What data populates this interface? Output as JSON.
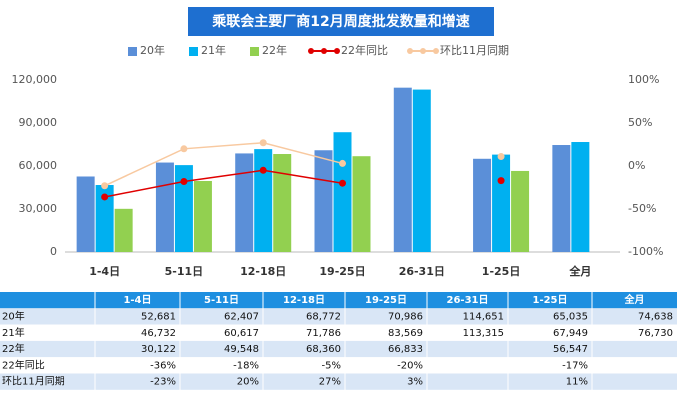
{
  "chart_data": {
    "type": "bar",
    "title": "乘联会主要厂商12月周度批发数量和增速",
    "categories": [
      "1-4日",
      "5-11日",
      "12-18日",
      "19-25日",
      "26-31日",
      "1-25日",
      "全月"
    ],
    "series": [
      {
        "name": "20年",
        "color": "#5b8fd8",
        "values": [
          52681,
          62407,
          68772,
          70986,
          114651,
          65035,
          74638
        ]
      },
      {
        "name": "21年",
        "color": "#00b0f0",
        "values": [
          46732,
          60617,
          71786,
          83569,
          113315,
          67949,
          76730
        ]
      },
      {
        "name": "22年",
        "color": "#92d050",
        "values": [
          30122,
          49548,
          68360,
          66833,
          null,
          56547,
          null
        ]
      },
      {
        "name": "22年同比",
        "type": "line",
        "axis": "y2",
        "color": "#e00000",
        "values": [
          -36,
          -18,
          -5,
          -20,
          null,
          -17,
          null
        ]
      },
      {
        "name": "环比11月同期",
        "type": "line",
        "axis": "y2",
        "color": "#f8c9a0",
        "values": [
          -23,
          20,
          27,
          3,
          null,
          11,
          null
        ]
      }
    ],
    "ylim": [
      0,
      120000
    ],
    "yticks": [
      0,
      {
        "value": 30000,
        "label": "30,000"
      },
      {
        "value": 60000,
        "label": "60,000"
      },
      {
        "value": 90000,
        "label": "90,000"
      },
      {
        "value": 120000,
        "label": "120,000"
      }
    ],
    "y2lim": [
      -100,
      100
    ],
    "y2ticks": [
      {
        "value": -100,
        "label": "-100%"
      },
      {
        "value": -50,
        "label": "-50%"
      },
      {
        "value": 0,
        "label": "0%"
      },
      {
        "value": 50,
        "label": "50%"
      },
      {
        "value": 100,
        "label": "100%"
      }
    ],
    "grid": false
  },
  "table": {
    "header": [
      "1-4日",
      "5-11日",
      "12-18日",
      "19-25日",
      "26-31日",
      "1-25日",
      "全月"
    ],
    "rows": [
      {
        "label": "20年",
        "cells": [
          "52,681",
          "62,407",
          "68,772",
          "70,986",
          "114,651",
          "65,035",
          "74,638"
        ]
      },
      {
        "label": "21年",
        "cells": [
          "46,732",
          "60,617",
          "71,786",
          "83,569",
          "113,315",
          "67,949",
          "76,730"
        ]
      },
      {
        "label": "22年",
        "cells": [
          "30,122",
          "49,548",
          "68,360",
          "66,833",
          null,
          "56,547",
          null
        ]
      },
      {
        "label": "22年同比",
        "cells": [
          "-36%",
          "-18%",
          "-5%",
          "-20%",
          null,
          "-17%",
          null
        ]
      },
      {
        "label": "环比11月同期",
        "cells": [
          "-23%",
          "20%",
          "27%",
          "3%",
          null,
          "11%",
          null
        ]
      }
    ]
  }
}
